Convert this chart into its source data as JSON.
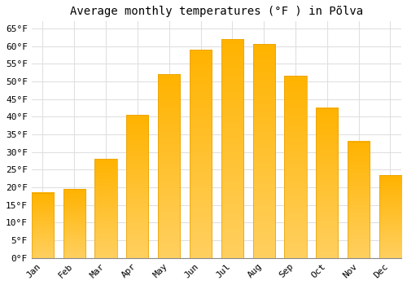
{
  "title": "Average monthly temperatures (°F ) in Põlva",
  "months": [
    "Jan",
    "Feb",
    "Mar",
    "Apr",
    "May",
    "Jun",
    "Jul",
    "Aug",
    "Sep",
    "Oct",
    "Nov",
    "Dec"
  ],
  "values": [
    18.5,
    19.5,
    28,
    40.5,
    52,
    59,
    62,
    60.5,
    51.5,
    42.5,
    33,
    23.5
  ],
  "bar_color_top": "#FFC020",
  "bar_color_bottom": "#FFB000",
  "bar_edge_color": "#E8A000",
  "background_color": "#ffffff",
  "grid_color": "#e0e0e0",
  "ylim": [
    0,
    67
  ],
  "yticks": [
    0,
    5,
    10,
    15,
    20,
    25,
    30,
    35,
    40,
    45,
    50,
    55,
    60,
    65
  ],
  "title_fontsize": 10,
  "tick_fontsize": 8,
  "font_family": "monospace"
}
